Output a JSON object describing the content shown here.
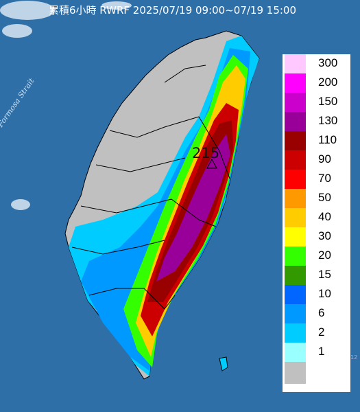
{
  "title": "累積6小時 RWRF 2025/07/19 09:00~07/19 15:00",
  "strait_label": "Formosa Strait",
  "max_marker": {
    "value": "215",
    "icon": "triangle-marker-icon"
  },
  "corner_mark": "12",
  "colors": {
    "sea": "#2f6fa8",
    "land_no_rain": "#c0c0c0",
    "border": "#000000"
  },
  "legend": [
    {
      "label": "300",
      "color": "#ffc8ff"
    },
    {
      "label": "200",
      "color": "#ff00ff"
    },
    {
      "label": "150",
      "color": "#cc00cc"
    },
    {
      "label": "130",
      "color": "#990099"
    },
    {
      "label": "110",
      "color": "#990000"
    },
    {
      "label": "90",
      "color": "#cc0000"
    },
    {
      "label": "70",
      "color": "#ff0000"
    },
    {
      "label": "50",
      "color": "#ff9900"
    },
    {
      "label": "40",
      "color": "#ffcc00"
    },
    {
      "label": "30",
      "color": "#ffff00"
    },
    {
      "label": "20",
      "color": "#33ff00"
    },
    {
      "label": "15",
      "color": "#339900"
    },
    {
      "label": "10",
      "color": "#0066ff"
    },
    {
      "label": "6",
      "color": "#0099ff"
    },
    {
      "label": "2",
      "color": "#00ccff"
    },
    {
      "label": "1",
      "color": "#99ffff"
    },
    {
      "label": "",
      "color": "#c0c0c0"
    }
  ]
}
